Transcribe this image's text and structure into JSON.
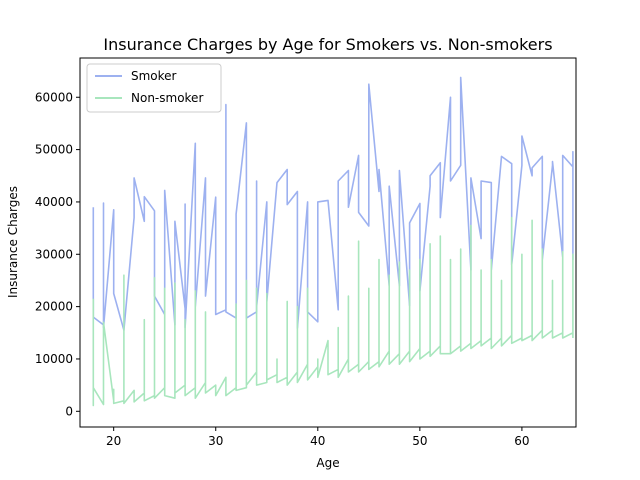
{
  "chart_data": {
    "type": "line",
    "title": "Insurance Charges by Age for Smokers vs. Non-smokers",
    "xlabel": "Age",
    "ylabel": "Insurance Charges",
    "xlim": [
      16.7,
      65.3
    ],
    "ylim": [
      -3000,
      67500
    ],
    "xticks": [
      20,
      30,
      40,
      50,
      60
    ],
    "yticks": [
      0,
      10000,
      20000,
      30000,
      40000,
      50000,
      60000
    ],
    "ytick_labels": [
      "0",
      "10000",
      "20000",
      "30000",
      "40000",
      "50000",
      "60000"
    ],
    "legend_position": "upper-left",
    "grid": false,
    "series": [
      {
        "name": "Smoker",
        "color": "#9db1f0",
        "points": [
          [
            18,
            39000
          ],
          [
            18,
            18000
          ],
          [
            19,
            16500
          ],
          [
            19,
            39800
          ],
          [
            19,
            16000
          ],
          [
            20,
            38500
          ],
          [
            20,
            22500
          ],
          [
            21,
            15500
          ],
          [
            22,
            37000
          ],
          [
            22,
            44600
          ],
          [
            23,
            36300
          ],
          [
            23,
            41000
          ],
          [
            24,
            38300
          ],
          [
            24,
            22000
          ],
          [
            25,
            18500
          ],
          [
            25,
            42200
          ],
          [
            26,
            16500
          ],
          [
            26,
            36300
          ],
          [
            27,
            19600
          ],
          [
            27,
            39600
          ],
          [
            27,
            16000
          ],
          [
            28,
            51200
          ],
          [
            28,
            20000
          ],
          [
            29,
            44600
          ],
          [
            29,
            22000
          ],
          [
            30,
            40900
          ],
          [
            30,
            18500
          ],
          [
            31,
            19400
          ],
          [
            31,
            58600
          ],
          [
            31,
            19000
          ],
          [
            32,
            17800
          ],
          [
            32,
            37700
          ],
          [
            33,
            55100
          ],
          [
            33,
            17800
          ],
          [
            34,
            19000
          ],
          [
            34,
            44000
          ],
          [
            34,
            20000
          ],
          [
            35,
            40000
          ],
          [
            35,
            21000
          ],
          [
            36,
            43700
          ],
          [
            37,
            46200
          ],
          [
            37,
            39500
          ],
          [
            38,
            42000
          ],
          [
            38,
            15900
          ],
          [
            39,
            40000
          ],
          [
            39,
            19000
          ],
          [
            40,
            17100
          ],
          [
            40,
            40000
          ],
          [
            41,
            40300
          ],
          [
            42,
            19400
          ],
          [
            42,
            44000
          ],
          [
            43,
            46000
          ],
          [
            43,
            39000
          ],
          [
            44,
            48900
          ],
          [
            44,
            38000
          ],
          [
            45,
            35400
          ],
          [
            45,
            62500
          ],
          [
            46,
            42000
          ],
          [
            46,
            46200
          ],
          [
            47,
            24000
          ],
          [
            47,
            43000
          ],
          [
            48,
            24000
          ],
          [
            48,
            46000
          ],
          [
            49,
            20200
          ],
          [
            49,
            36000
          ],
          [
            50,
            39700
          ],
          [
            50,
            23000
          ],
          [
            51,
            43000
          ],
          [
            51,
            45000
          ],
          [
            52,
            47500
          ],
          [
            52,
            37000
          ],
          [
            53,
            60000
          ],
          [
            53,
            44000
          ],
          [
            54,
            47000
          ],
          [
            54,
            63800
          ],
          [
            55,
            27000
          ],
          [
            55,
            44600
          ],
          [
            56,
            33000
          ],
          [
            56,
            44000
          ],
          [
            57,
            43700
          ],
          [
            57,
            27000
          ],
          [
            58,
            48700
          ],
          [
            59,
            47300
          ],
          [
            59,
            28000
          ],
          [
            60,
            47000
          ],
          [
            60,
            52600
          ],
          [
            61,
            45000
          ],
          [
            61,
            46500
          ],
          [
            62,
            48700
          ],
          [
            62,
            29000
          ],
          [
            63,
            47000
          ],
          [
            63,
            47700
          ],
          [
            64,
            29500
          ],
          [
            64,
            48900
          ],
          [
            65,
            46700
          ],
          [
            65,
            29000
          ],
          [
            65,
            49600
          ],
          [
            65,
            46700
          ]
        ]
      },
      {
        "name": "Non-smoker",
        "color": "#a8e6bd",
        "points": [
          [
            18,
            21500
          ],
          [
            18,
            1100
          ],
          [
            18,
            4500
          ],
          [
            19,
            1300
          ],
          [
            19,
            2500
          ],
          [
            19,
            17000
          ],
          [
            20,
            2000
          ],
          [
            20,
            4200
          ],
          [
            20,
            1500
          ],
          [
            21,
            2000
          ],
          [
            21,
            26000
          ],
          [
            21,
            1500
          ],
          [
            22,
            4000
          ],
          [
            22,
            1800
          ],
          [
            23,
            3500
          ],
          [
            23,
            17500
          ],
          [
            23,
            2000
          ],
          [
            24,
            3000
          ],
          [
            24,
            25500
          ],
          [
            24,
            2500
          ],
          [
            25,
            4500
          ],
          [
            25,
            23500
          ],
          [
            25,
            3000
          ],
          [
            26,
            2500
          ],
          [
            26,
            24500
          ],
          [
            26,
            3500
          ],
          [
            27,
            5000
          ],
          [
            27,
            17500
          ],
          [
            27,
            3000
          ],
          [
            28,
            4500
          ],
          [
            28,
            23000
          ],
          [
            28,
            2500
          ],
          [
            29,
            5500
          ],
          [
            29,
            19000
          ],
          [
            29,
            3500
          ],
          [
            30,
            5000
          ],
          [
            30,
            4000
          ],
          [
            30,
            3000
          ],
          [
            31,
            6500
          ],
          [
            31,
            3000
          ],
          [
            32,
            4500
          ],
          [
            32,
            20500
          ],
          [
            32,
            4000
          ],
          [
            33,
            4500
          ],
          [
            33,
            25000
          ],
          [
            33,
            5000
          ],
          [
            34,
            7500
          ],
          [
            34,
            23500
          ],
          [
            34,
            5000
          ],
          [
            35,
            5500
          ],
          [
            35,
            22500
          ],
          [
            35,
            6000
          ],
          [
            36,
            7000
          ],
          [
            36,
            10000
          ],
          [
            36,
            5500
          ],
          [
            37,
            6500
          ],
          [
            37,
            21000
          ],
          [
            37,
            5000
          ],
          [
            38,
            7500
          ],
          [
            38,
            20000
          ],
          [
            38,
            5500
          ],
          [
            39,
            9000
          ],
          [
            39,
            23500
          ],
          [
            39,
            6000
          ],
          [
            40,
            8500
          ],
          [
            40,
            10000
          ],
          [
            40,
            6500
          ],
          [
            41,
            13500
          ],
          [
            41,
            7000
          ],
          [
            42,
            8000
          ],
          [
            42,
            16000
          ],
          [
            42,
            6500
          ],
          [
            43,
            10000
          ],
          [
            43,
            22000
          ],
          [
            43,
            7500
          ],
          [
            44,
            9000
          ],
          [
            44,
            32500
          ],
          [
            44,
            7500
          ],
          [
            45,
            9500
          ],
          [
            45,
            23500
          ],
          [
            45,
            8000
          ],
          [
            46,
            9500
          ],
          [
            46,
            29000
          ],
          [
            46,
            8500
          ],
          [
            47,
            11500
          ],
          [
            47,
            26000
          ],
          [
            47,
            9000
          ],
          [
            48,
            11000
          ],
          [
            48,
            28500
          ],
          [
            48,
            9000
          ],
          [
            49,
            11500
          ],
          [
            49,
            27000
          ],
          [
            49,
            9500
          ],
          [
            50,
            12000
          ],
          [
            50,
            29000
          ],
          [
            50,
            10000
          ],
          [
            51,
            11500
          ],
          [
            51,
            32000
          ],
          [
            51,
            10500
          ],
          [
            52,
            12500
          ],
          [
            52,
            33500
          ],
          [
            52,
            11000
          ],
          [
            53,
            11000
          ],
          [
            53,
            29000
          ],
          [
            53,
            11000
          ],
          [
            54,
            12500
          ],
          [
            54,
            31000
          ],
          [
            54,
            11500
          ],
          [
            55,
            13000
          ],
          [
            55,
            35500
          ],
          [
            55,
            12000
          ],
          [
            56,
            13500
          ],
          [
            56,
            27000
          ],
          [
            56,
            12500
          ],
          [
            57,
            14000
          ],
          [
            57,
            29000
          ],
          [
            57,
            12000
          ],
          [
            58,
            14000
          ],
          [
            58,
            25000
          ],
          [
            58,
            12500
          ],
          [
            59,
            14500
          ],
          [
            59,
            37000
          ],
          [
            59,
            13000
          ],
          [
            60,
            14000
          ],
          [
            60,
            30000
          ],
          [
            60,
            13500
          ],
          [
            61,
            14500
          ],
          [
            61,
            36500
          ],
          [
            61,
            13500
          ],
          [
            62,
            15500
          ],
          [
            62,
            31000
          ],
          [
            62,
            14000
          ],
          [
            63,
            15500
          ],
          [
            63,
            25000
          ],
          [
            63,
            14000
          ],
          [
            64,
            15000
          ],
          [
            64,
            30500
          ],
          [
            64,
            14000
          ],
          [
            65,
            15000
          ],
          [
            65,
            30000
          ],
          [
            65,
            14000
          ]
        ]
      }
    ]
  }
}
